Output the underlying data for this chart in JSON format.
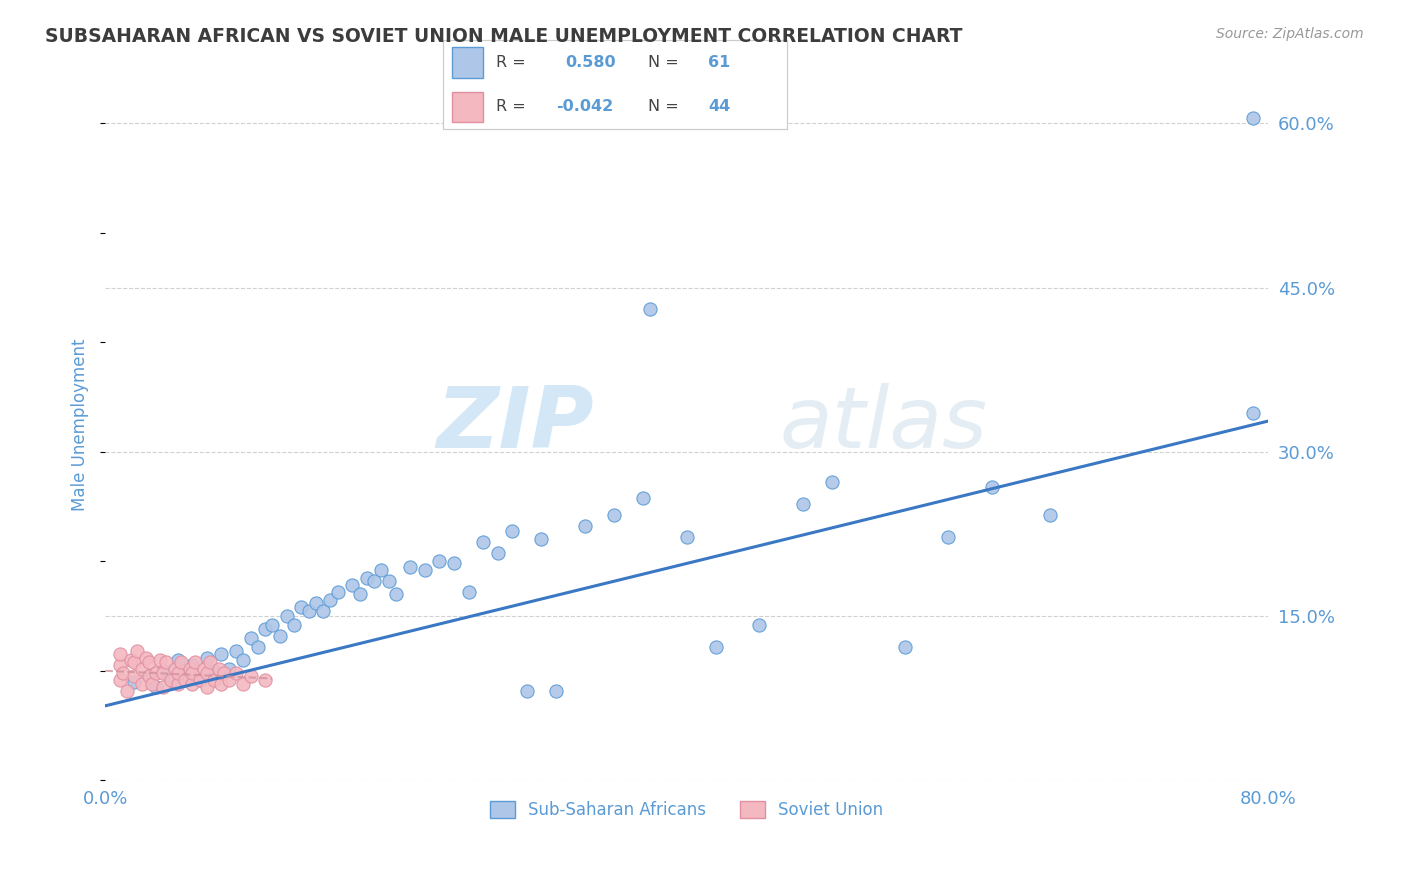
{
  "title": "SUBSAHARAN AFRICAN VS SOVIET UNION MALE UNEMPLOYMENT CORRELATION CHART",
  "source": "Source: ZipAtlas.com",
  "ylabel": "Male Unemployment",
  "xlim": [
    0.0,
    0.8
  ],
  "ylim": [
    0.0,
    0.65
  ],
  "ytick_positions": [
    0.0,
    0.15,
    0.3,
    0.45,
    0.6
  ],
  "ytick_labels": [
    "",
    "15.0%",
    "30.0%",
    "45.0%",
    "60.0%"
  ],
  "legend_labels": [
    "Sub-Saharan Africans",
    "Soviet Union"
  ],
  "blue_color": "#5b9bd5",
  "blue_scatter_face": "#aec6e8",
  "blue_scatter_edge": "#5b9bd5",
  "pink_scatter_face": "#f4b8c1",
  "pink_scatter_edge": "#e090a0",
  "blue_line_color": "#3b78c4",
  "pink_line_color": "#d0909a",
  "watermark_zip": "ZIP",
  "watermark_atlas": "atlas",
  "r_blue": 0.58,
  "n_blue": 61,
  "r_pink": -0.042,
  "n_pink": 44,
  "blue_x": [
    0.02,
    0.03,
    0.035,
    0.04,
    0.045,
    0.05,
    0.055,
    0.06,
    0.065,
    0.07,
    0.075,
    0.08,
    0.085,
    0.09,
    0.095,
    0.1,
    0.105,
    0.11,
    0.115,
    0.12,
    0.125,
    0.13,
    0.135,
    0.14,
    0.145,
    0.15,
    0.155,
    0.16,
    0.17,
    0.175,
    0.18,
    0.185,
    0.19,
    0.195,
    0.2,
    0.21,
    0.22,
    0.23,
    0.24,
    0.25,
    0.26,
    0.27,
    0.28,
    0.29,
    0.3,
    0.31,
    0.33,
    0.35,
    0.37,
    0.4,
    0.375,
    0.42,
    0.45,
    0.48,
    0.5,
    0.55,
    0.58,
    0.61,
    0.65,
    0.79,
    0.79
  ],
  "blue_y": [
    0.09,
    0.095,
    0.085,
    0.1,
    0.092,
    0.11,
    0.095,
    0.105,
    0.092,
    0.112,
    0.1,
    0.115,
    0.102,
    0.118,
    0.11,
    0.13,
    0.122,
    0.138,
    0.142,
    0.132,
    0.15,
    0.142,
    0.158,
    0.155,
    0.162,
    0.155,
    0.165,
    0.172,
    0.178,
    0.17,
    0.185,
    0.182,
    0.192,
    0.182,
    0.17,
    0.195,
    0.192,
    0.2,
    0.198,
    0.172,
    0.218,
    0.208,
    0.228,
    0.082,
    0.22,
    0.082,
    0.232,
    0.242,
    0.258,
    0.222,
    0.43,
    0.122,
    0.142,
    0.252,
    0.272,
    0.122,
    0.222,
    0.268,
    0.242,
    0.605,
    0.335
  ],
  "pink_x": [
    0.01,
    0.01,
    0.01,
    0.012,
    0.015,
    0.018,
    0.02,
    0.02,
    0.022,
    0.025,
    0.025,
    0.028,
    0.03,
    0.03,
    0.032,
    0.035,
    0.038,
    0.04,
    0.04,
    0.042,
    0.045,
    0.048,
    0.05,
    0.05,
    0.052,
    0.055,
    0.058,
    0.06,
    0.06,
    0.062,
    0.065,
    0.068,
    0.07,
    0.07,
    0.072,
    0.075,
    0.078,
    0.08,
    0.082,
    0.085,
    0.09,
    0.095,
    0.1,
    0.11
  ],
  "pink_y": [
    0.092,
    0.105,
    0.115,
    0.098,
    0.082,
    0.11,
    0.095,
    0.108,
    0.118,
    0.088,
    0.102,
    0.112,
    0.095,
    0.108,
    0.088,
    0.098,
    0.11,
    0.085,
    0.098,
    0.108,
    0.092,
    0.102,
    0.088,
    0.098,
    0.108,
    0.092,
    0.102,
    0.088,
    0.098,
    0.108,
    0.092,
    0.102,
    0.085,
    0.098,
    0.108,
    0.092,
    0.102,
    0.088,
    0.098,
    0.092,
    0.098,
    0.088,
    0.095,
    0.092
  ],
  "title_color": "#3c3c3c",
  "tick_color": "#5b9bd5",
  "grid_color": "#cccccc",
  "background_color": "#ffffff"
}
